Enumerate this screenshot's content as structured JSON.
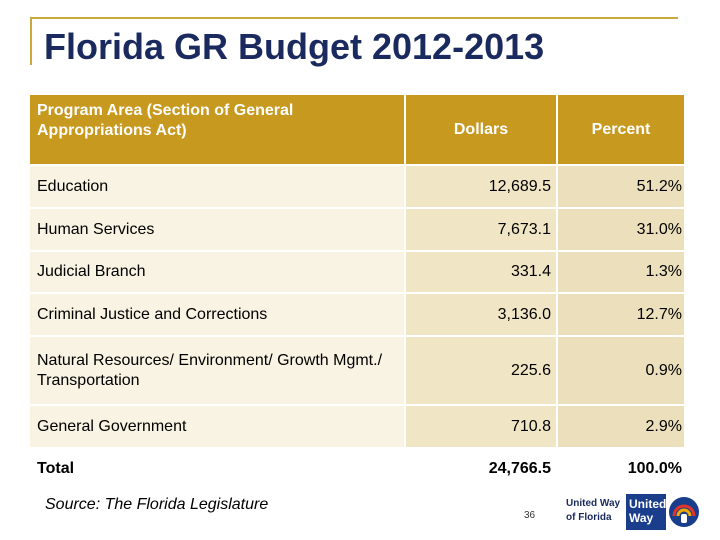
{
  "slide": {
    "title": "Florida GR Budget 2012-2013",
    "source": "Source:  The Florida Legislature",
    "page_number": "36"
  },
  "table": {
    "headers": {
      "program": "Program Area (Section of General Appropriations Act)",
      "dollars": "Dollars",
      "percent": "Percent"
    },
    "rows": [
      {
        "area": "Education",
        "dollars": "12,689.5",
        "percent": "51.2%"
      },
      {
        "area": "Human Services",
        "dollars": "7,673.1",
        "percent": "31.0%"
      },
      {
        "area": "Judicial Branch",
        "dollars": "331.4",
        "percent": "1.3%"
      },
      {
        "area": "Criminal Justice and Corrections",
        "dollars": "3,136.0",
        "percent": "12.7%"
      },
      {
        "area": "Natural Resources/ Environment/ Growth Mgmt./ Transportation",
        "dollars": "225.6",
        "percent": "0.9%"
      },
      {
        "area": "General Government",
        "dollars": "710.8",
        "percent": "2.9%"
      }
    ],
    "total": {
      "area": "Total",
      "dollars": "24,766.5",
      "percent": "100.0%"
    }
  },
  "logo": {
    "text_line1": "United Way",
    "text_line2": "of Florida",
    "mark_line1": "United",
    "mark_line2": "Way",
    "icon": "hand-rainbow-icon"
  },
  "colors": {
    "accent_gold": "#c8991f",
    "title_navy": "#1a2a5e",
    "row_light": "#f8f3e2",
    "row_mid": "#f0e5c4"
  }
}
